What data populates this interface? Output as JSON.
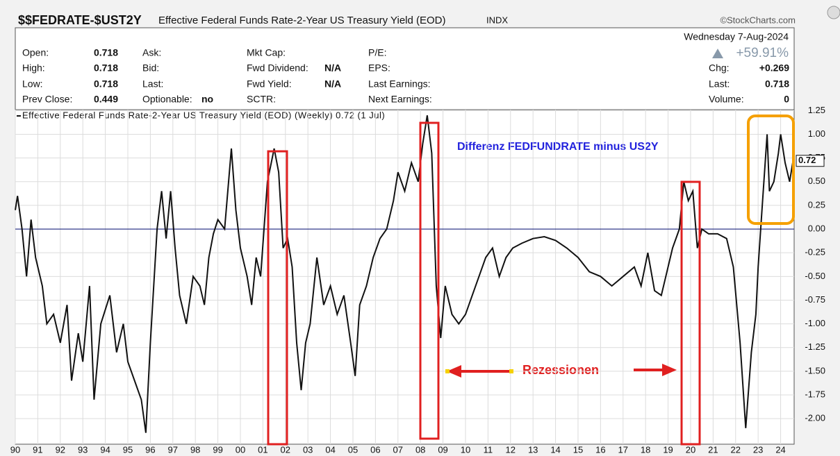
{
  "header": {
    "symbol": "$$FEDRATE-$UST2Y",
    "name": "Effective Federal Funds Rate-2-Year US Treasury Yield (EOD)",
    "exchange": "INDX",
    "credit": "©StockCharts.com",
    "date": "Wednesday  7-Aug-2024",
    "change_pct": "+59.91%",
    "info": [
      [
        [
          "Open:",
          "0.718"
        ],
        [
          "High:",
          "0.718"
        ],
        [
          "Low:",
          "0.718"
        ],
        [
          "Prev Close:",
          "0.449"
        ]
      ],
      [
        [
          "Ask:"
        ],
        [
          "Bid:"
        ],
        [
          "Last:"
        ],
        [
          "Optionable:",
          "no"
        ]
      ],
      [
        [
          "Mkt Cap:"
        ],
        [
          "Fwd Dividend:",
          "N/A"
        ],
        [
          "Fwd Yield:",
          "N/A"
        ],
        [
          "SCTR:"
        ]
      ],
      [
        [
          "P/E:"
        ],
        [
          "EPS:"
        ],
        [
          "Last Earnings:"
        ],
        [
          "Next Earnings:"
        ]
      ]
    ],
    "right_info": [
      [
        "Chg:",
        "+0.269"
      ],
      [
        "Last:",
        "0.718"
      ],
      [
        "Volume:",
        "0"
      ]
    ]
  },
  "chart_data": {
    "type": "line",
    "legend": "Effective Federal Funds Rate-2-Year US Treasury Yield (EOD) (Weekly) 0.72 (1 Jul)",
    "annotations": [
      "Differenz FEDFUNDRATE minus US2Y",
      "Rezessionen"
    ],
    "last_value": 0.72,
    "reference_line": 0,
    "grid": true,
    "xlim": [
      1990,
      2024.6
    ],
    "ylim": [
      -2.27,
      1.26
    ],
    "xticks": [
      {
        "value": 1990,
        "label": "90"
      },
      {
        "value": 1991,
        "label": "91"
      },
      {
        "value": 1992,
        "label": "92"
      },
      {
        "value": 1993,
        "label": "93"
      },
      {
        "value": 1994,
        "label": "94"
      },
      {
        "value": 1995,
        "label": "95"
      },
      {
        "value": 1996,
        "label": "96"
      },
      {
        "value": 1997,
        "label": "97"
      },
      {
        "value": 1998,
        "label": "98"
      },
      {
        "value": 1999,
        "label": "99"
      },
      {
        "value": 2000,
        "label": "00"
      },
      {
        "value": 2001,
        "label": "01"
      },
      {
        "value": 2002,
        "label": "02"
      },
      {
        "value": 2003,
        "label": "03"
      },
      {
        "value": 2004,
        "label": "04"
      },
      {
        "value": 2005,
        "label": "05"
      },
      {
        "value": 2006,
        "label": "06"
      },
      {
        "value": 2007,
        "label": "07"
      },
      {
        "value": 2008,
        "label": "08"
      },
      {
        "value": 2009,
        "label": "09"
      },
      {
        "value": 2010,
        "label": "10"
      },
      {
        "value": 2011,
        "label": "11"
      },
      {
        "value": 2012,
        "label": "12"
      },
      {
        "value": 2013,
        "label": "13"
      },
      {
        "value": 2014,
        "label": "14"
      },
      {
        "value": 2015,
        "label": "15"
      },
      {
        "value": 2016,
        "label": "16"
      },
      {
        "value": 2017,
        "label": "17"
      },
      {
        "value": 2018,
        "label": "18"
      },
      {
        "value": 2019,
        "label": "19"
      },
      {
        "value": 2020,
        "label": "20"
      },
      {
        "value": 2021,
        "label": "21"
      },
      {
        "value": 2022,
        "label": "22"
      },
      {
        "value": 2023,
        "label": "23"
      },
      {
        "value": 2024,
        "label": "24"
      }
    ],
    "yticks": [
      {
        "value": 1.25,
        "label": "1.25"
      },
      {
        "value": 1,
        "label": "1.00"
      },
      {
        "value": 0.75,
        "label": "0.75"
      },
      {
        "value": 0.5,
        "label": "0.50"
      },
      {
        "value": 0.25,
        "label": "0.25"
      },
      {
        "value": 0,
        "label": "0.00"
      },
      {
        "value": -0.25,
        "label": "-0.25"
      },
      {
        "value": -0.5,
        "label": "-0.50"
      },
      {
        "value": -0.75,
        "label": "-0.75"
      },
      {
        "value": -1,
        "label": "-1.00"
      },
      {
        "value": -1.25,
        "label": "-1.25"
      },
      {
        "value": -1.5,
        "label": "-1.50"
      },
      {
        "value": -1.75,
        "label": "-1.75"
      },
      {
        "value": -2,
        "label": "-2.00"
      }
    ],
    "series": [
      {
        "name": "Effective Federal Funds Rate-2-Year US Treasury Yield (EOD)",
        "color": "#111111",
        "x": [
          1990.0,
          1990.1,
          1990.3,
          1990.5,
          1990.7,
          1990.9,
          1991.2,
          1991.4,
          1991.7,
          1992.0,
          1992.3,
          1992.5,
          1992.8,
          1993.0,
          1993.3,
          1993.5,
          1993.8,
          1994.2,
          1994.5,
          1994.8,
          1995.0,
          1995.3,
          1995.6,
          1995.8,
          1996.0,
          1996.3,
          1996.5,
          1996.7,
          1996.9,
          1997.1,
          1997.3,
          1997.6,
          1997.9,
          1998.2,
          1998.4,
          1998.6,
          1998.8,
          1999.0,
          1999.3,
          1999.6,
          1999.8,
          2000.0,
          2000.3,
          2000.5,
          2000.7,
          2000.9,
          2001.2,
          2001.5,
          2001.7,
          2001.9,
          2002.1,
          2002.3,
          2002.5,
          2002.7,
          2002.9,
          2003.1,
          2003.4,
          2003.7,
          2004.0,
          2004.3,
          2004.6,
          2004.9,
          2005.1,
          2005.3,
          2005.6,
          2005.9,
          2006.2,
          2006.5,
          2006.8,
          2007.0,
          2007.3,
          2007.6,
          2007.9,
          2008.1,
          2008.3,
          2008.5,
          2008.7,
          2008.9,
          2009.1,
          2009.4,
          2009.7,
          2010.0,
          2010.3,
          2010.6,
          2010.9,
          2011.2,
          2011.5,
          2011.8,
          2012.1,
          2012.5,
          2013.0,
          2013.5,
          2014.0,
          2014.5,
          2015.0,
          2015.5,
          2016.0,
          2016.5,
          2017.0,
          2017.5,
          2017.8,
          2018.1,
          2018.4,
          2018.7,
          2018.9,
          2019.2,
          2019.5,
          2019.7,
          2019.9,
          2020.1,
          2020.3,
          2020.5,
          2020.8,
          2021.2,
          2021.6,
          2021.9,
          2022.2,
          2022.45,
          2022.7,
          2022.9,
          2023.0,
          2023.2,
          2023.4,
          2023.5,
          2023.7,
          2023.9,
          2024.0,
          2024.2,
          2024.4,
          2024.55
        ],
        "values": [
          0.2,
          0.35,
          0.0,
          -0.5,
          0.1,
          -0.3,
          -0.6,
          -1.0,
          -0.9,
          -1.2,
          -0.8,
          -1.6,
          -1.1,
          -1.4,
          -0.6,
          -1.8,
          -1.0,
          -0.7,
          -1.3,
          -1.0,
          -1.4,
          -1.6,
          -1.8,
          -2.15,
          -1.2,
          0.0,
          0.4,
          -0.1,
          0.4,
          -0.2,
          -0.7,
          -1.0,
          -0.5,
          -0.6,
          -0.8,
          -0.3,
          -0.05,
          0.1,
          0.0,
          0.85,
          0.2,
          -0.2,
          -0.5,
          -0.8,
          -0.3,
          -0.5,
          0.5,
          0.85,
          0.6,
          -0.2,
          -0.1,
          -0.4,
          -1.2,
          -1.7,
          -1.2,
          -1.0,
          -0.3,
          -0.8,
          -0.6,
          -0.9,
          -0.7,
          -1.2,
          -1.55,
          -0.8,
          -0.6,
          -0.3,
          -0.1,
          0.0,
          0.3,
          0.6,
          0.4,
          0.7,
          0.5,
          0.9,
          1.2,
          0.8,
          -0.6,
          -1.15,
          -0.6,
          -0.9,
          -1.0,
          -0.9,
          -0.7,
          -0.5,
          -0.3,
          -0.2,
          -0.5,
          -0.3,
          -0.2,
          -0.15,
          -0.1,
          -0.08,
          -0.12,
          -0.2,
          -0.3,
          -0.45,
          -0.5,
          -0.6,
          -0.5,
          -0.4,
          -0.6,
          -0.25,
          -0.65,
          -0.7,
          -0.5,
          -0.2,
          0.0,
          0.5,
          0.3,
          0.4,
          -0.2,
          0.0,
          -0.05,
          -0.05,
          -0.1,
          -0.4,
          -1.2,
          -2.1,
          -1.3,
          -0.9,
          -0.4,
          0.3,
          1.0,
          0.4,
          0.5,
          0.8,
          1.0,
          0.7,
          0.5,
          0.72
        ]
      }
    ]
  }
}
